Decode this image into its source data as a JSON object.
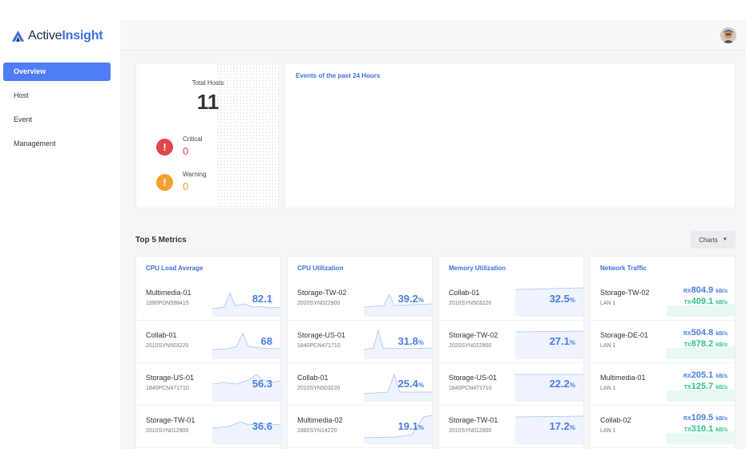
{
  "brand": {
    "name_prefix": "Active",
    "name_suffix": "Insight"
  },
  "sidebar": {
    "items": [
      {
        "label": "Overview",
        "active": true
      },
      {
        "label": "Host",
        "active": false
      },
      {
        "label": "Event",
        "active": false
      },
      {
        "label": "Management",
        "active": false
      }
    ]
  },
  "summary": {
    "total_hosts_label": "Total Hosts",
    "total_hosts_value": "11",
    "critical": {
      "label": "Critical",
      "value": "0",
      "icon": "exclamation-icon",
      "color": "#e0474c"
    },
    "warning": {
      "label": "Warning",
      "value": "0",
      "icon": "exclamation-icon",
      "color": "#f5a032"
    }
  },
  "events": {
    "title": "Events of the past 24 Hours"
  },
  "metrics_section": {
    "title": "Top 5 Metrics",
    "charts_button": "Charts"
  },
  "metrics": [
    {
      "title": "CPU Load Average",
      "rows": [
        {
          "name": "Multimedia-01",
          "serial": "1990PDN598415",
          "value": "82.1",
          "unit": ""
        },
        {
          "name": "Collab-01",
          "serial": "2010SYN503220",
          "value": "68",
          "unit": ""
        },
        {
          "name": "Storage-US-01",
          "serial": "1840PCN471710",
          "value": "56.3",
          "unit": ""
        },
        {
          "name": "Storage-TW-01",
          "serial": "2010SYN012900",
          "value": "36.6",
          "unit": ""
        }
      ]
    },
    {
      "title": "CPU Utilization",
      "rows": [
        {
          "name": "Storage-TW-02",
          "serial": "2020SYN022900",
          "value": "39.2",
          "unit": "%"
        },
        {
          "name": "Storage-US-01",
          "serial": "1840PCN471710",
          "value": "31.8",
          "unit": "%"
        },
        {
          "name": "Collab-01",
          "serial": "2010SYN503220",
          "value": "25.4",
          "unit": "%"
        },
        {
          "name": "Multimedia-02",
          "serial": "1880SYN14220",
          "value": "19.1",
          "unit": "%"
        }
      ]
    },
    {
      "title": "Memory Utilization",
      "rows": [
        {
          "name": "Collab-01",
          "serial": "2010SYN503220",
          "value": "32.5",
          "unit": "%"
        },
        {
          "name": "Storage-TW-02",
          "serial": "2020SYN022900",
          "value": "27.1",
          "unit": "%"
        },
        {
          "name": "Storage-US-01",
          "serial": "1840PCN471710",
          "value": "22.2",
          "unit": "%"
        },
        {
          "name": "Storage-TW-01",
          "serial": "2010SYN012900",
          "value": "17.2",
          "unit": "%"
        }
      ]
    }
  ],
  "network": {
    "title": "Network Traffic",
    "rx_prefix": "RX",
    "tx_prefix": "TX",
    "unit": "kB/s",
    "rx_color": "#4a7fe0",
    "tx_color": "#2bc48a",
    "rows": [
      {
        "name": "Storage-TW-02",
        "lan": "LAN 1",
        "rx": "804.9",
        "tx": "409.1"
      },
      {
        "name": "Storage-DE-01",
        "lan": "LAN 1",
        "rx": "504.8",
        "tx": "878.2"
      },
      {
        "name": "Multimedia-01",
        "lan": "LAN 1",
        "rx": "205.1",
        "tx": "125.7"
      },
      {
        "name": "Collab-02",
        "lan": "LAN 1",
        "rx": "109.5",
        "tx": "310.1"
      }
    ]
  }
}
